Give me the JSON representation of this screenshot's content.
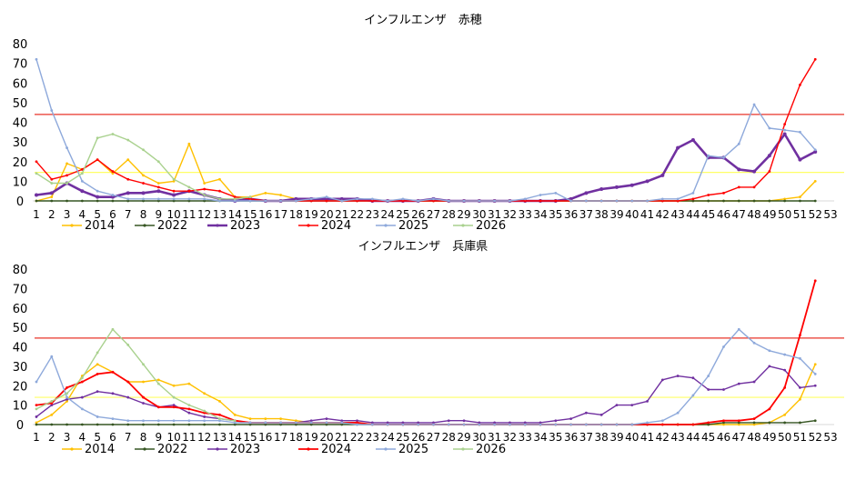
{
  "chart_data": [
    {
      "type": "line",
      "title": "インフルエンザ　赤穂",
      "categories": [
        "1",
        "2",
        "3",
        "4",
        "5",
        "6",
        "7",
        "8",
        "9",
        "10",
        "11",
        "12",
        "13",
        "14",
        "15",
        "16",
        "17",
        "18",
        "19",
        "20",
        "21",
        "22",
        "23",
        "24",
        "25",
        "26",
        "27",
        "28",
        "29",
        "30",
        "31",
        "32",
        "33",
        "34",
        "35",
        "36",
        "37",
        "38",
        "39",
        "40",
        "41",
        "42",
        "43",
        "44",
        "45",
        "46",
        "47",
        "48",
        "49",
        "50",
        "51",
        "52",
        "53"
      ],
      "yticks": [
        "0",
        "10",
        "20",
        "30",
        "40",
        "50",
        "60",
        "70",
        "80"
      ],
      "ylim": [
        0,
        80
      ],
      "reference_lines": [
        {
          "value": 44,
          "color": "#e8352a"
        },
        {
          "value": 14.5,
          "color": "#ffff66"
        }
      ],
      "legend_placement": "bottom",
      "series": [
        {
          "name": "2014",
          "color": "#ffc000",
          "width": 1.4,
          "values": [
            0,
            2,
            19,
            16,
            21,
            14,
            21,
            13,
            9,
            10,
            29,
            9,
            11,
            2,
            2,
            4,
            3,
            1,
            1,
            1,
            1,
            1,
            0,
            0,
            0,
            0,
            0,
            0,
            0,
            0,
            0,
            0,
            0,
            0,
            0,
            0,
            0,
            0,
            0,
            0,
            0,
            0,
            0,
            0,
            0,
            0,
            0,
            0,
            0,
            1,
            2,
            10,
            null
          ]
        },
        {
          "name": "2022",
          "color": "#375623",
          "width": 1.4,
          "values": [
            0,
            0,
            0,
            0,
            0,
            0,
            0,
            0,
            0,
            0,
            0,
            0,
            0,
            0,
            0,
            0,
            0,
            0,
            0,
            0,
            0,
            0,
            0,
            0,
            0,
            0,
            0,
            0,
            0,
            0,
            0,
            0,
            0,
            0,
            0,
            0,
            0,
            0,
            0,
            0,
            0,
            0,
            0,
            0,
            0,
            0,
            0,
            0,
            0,
            0,
            0,
            0,
            null
          ]
        },
        {
          "name": "2023",
          "color": "#7030a0",
          "width": 2.6,
          "values": [
            3,
            4,
            9,
            5,
            2,
            2,
            4,
            4,
            5,
            3,
            5,
            3,
            1,
            0,
            1,
            0,
            0,
            1,
            1,
            1,
            1,
            1,
            0,
            0,
            0,
            0,
            1,
            0,
            0,
            0,
            0,
            0,
            0,
            0,
            0,
            1,
            4,
            6,
            7,
            8,
            10,
            13,
            27,
            31,
            22,
            22,
            16,
            15,
            23,
            34,
            21,
            25,
            null
          ]
        },
        {
          "name": "2024",
          "color": "#ff0000",
          "width": 1.4,
          "values": [
            20,
            11,
            13,
            16,
            21,
            15,
            11,
            9,
            7,
            5,
            5,
            6,
            5,
            2,
            1,
            0,
            0,
            0,
            0,
            0,
            0,
            0,
            0,
            0,
            0,
            0,
            0,
            0,
            0,
            0,
            0,
            0,
            0,
            0,
            0,
            0,
            0,
            0,
            0,
            0,
            0,
            0,
            0,
            1,
            3,
            4,
            7,
            7,
            15,
            39,
            59,
            72,
            null
          ]
        },
        {
          "name": "2025",
          "color": "#8ea9db",
          "width": 1.4,
          "values": [
            72,
            46,
            27,
            10,
            5,
            3,
            1,
            1,
            1,
            1,
            1,
            1,
            0,
            0,
            0,
            0,
            0,
            0,
            1,
            2,
            0,
            1,
            1,
            0,
            1,
            0,
            1,
            0,
            0,
            0,
            0,
            0,
            1,
            3,
            4,
            0,
            0,
            0,
            0,
            0,
            0,
            1,
            1,
            4,
            23,
            22,
            29,
            49,
            37,
            36,
            35,
            26,
            null
          ]
        },
        {
          "name": "2026",
          "color": "#a9d18e",
          "width": 1.4,
          "values": [
            14,
            9,
            9,
            14,
            32,
            34,
            31,
            26,
            20,
            11,
            7,
            3,
            1,
            1,
            2,
            null,
            null,
            null,
            null,
            null,
            null,
            null,
            null,
            null,
            null,
            null,
            null,
            null,
            null,
            null,
            null,
            null,
            null,
            null,
            null,
            null,
            null,
            null,
            null,
            null,
            null,
            null,
            null,
            null,
            null,
            null,
            null,
            null,
            null,
            null,
            null,
            null,
            null
          ]
        }
      ]
    },
    {
      "type": "line",
      "title": "インフルエンザ　兵庫県",
      "categories": [
        "1",
        "2",
        "3",
        "4",
        "5",
        "6",
        "7",
        "8",
        "9",
        "10",
        "11",
        "12",
        "13",
        "14",
        "15",
        "16",
        "17",
        "18",
        "19",
        "20",
        "21",
        "22",
        "23",
        "24",
        "25",
        "26",
        "27",
        "28",
        "29",
        "30",
        "31",
        "32",
        "33",
        "34",
        "35",
        "36",
        "37",
        "38",
        "39",
        "40",
        "41",
        "42",
        "43",
        "44",
        "45",
        "46",
        "47",
        "48",
        "49",
        "50",
        "51",
        "52",
        "53"
      ],
      "yticks": [
        "0",
        "10",
        "20",
        "30",
        "40",
        "50",
        "60",
        "70",
        "80"
      ],
      "ylim": [
        0,
        80
      ],
      "reference_lines": [
        {
          "value": 44.5,
          "color": "#e8352a"
        },
        {
          "value": 14,
          "color": "#ffff66"
        }
      ],
      "legend_placement": "bottom",
      "series": [
        {
          "name": "2014",
          "color": "#ffc000",
          "width": 1.4,
          "values": [
            1,
            5,
            12,
            25,
            31,
            27,
            22,
            22,
            23,
            20,
            21,
            16,
            12,
            5,
            3,
            3,
            3,
            2,
            1,
            1,
            1,
            1,
            0,
            0,
            0,
            0,
            0,
            0,
            0,
            0,
            0,
            0,
            0,
            0,
            0,
            0,
            0,
            0,
            0,
            0,
            0,
            0,
            0,
            0,
            0,
            0,
            0,
            0,
            1,
            5,
            13,
            31,
            null
          ]
        },
        {
          "name": "2022",
          "color": "#375623",
          "width": 1.4,
          "values": [
            0,
            0,
            0,
            0,
            0,
            0,
            0,
            0,
            0,
            0,
            0,
            0,
            0,
            0,
            0,
            0,
            0,
            0,
            0,
            0,
            0,
            0,
            0,
            0,
            0,
            0,
            0,
            0,
            0,
            0,
            0,
            0,
            0,
            0,
            0,
            0,
            0,
            0,
            0,
            0,
            0,
            0,
            0,
            0,
            0,
            1,
            1,
            1,
            1,
            1,
            1,
            2,
            null
          ]
        },
        {
          "name": "2023",
          "color": "#7030a0",
          "width": 1.4,
          "values": [
            4,
            10,
            13,
            14,
            17,
            16,
            14,
            11,
            9,
            10,
            6,
            4,
            3,
            2,
            1,
            1,
            1,
            1,
            2,
            3,
            2,
            2,
            1,
            1,
            1,
            1,
            1,
            2,
            2,
            1,
            1,
            1,
            1,
            1,
            2,
            3,
            6,
            5,
            10,
            10,
            12,
            23,
            25,
            24,
            18,
            18,
            21,
            22,
            30,
            28,
            19,
            20,
            null
          ]
        },
        {
          "name": "2024",
          "color": "#ff0000",
          "width": 1.8,
          "values": [
            10,
            11,
            19,
            22,
            26,
            27,
            22,
            14,
            9,
            9,
            8,
            6,
            5,
            2,
            1,
            1,
            1,
            1,
            1,
            1,
            1,
            1,
            0,
            0,
            0,
            0,
            0,
            0,
            0,
            0,
            0,
            0,
            0,
            0,
            0,
            0,
            0,
            0,
            0,
            0,
            0,
            0,
            0,
            0,
            1,
            2,
            2,
            3,
            8,
            19,
            46,
            74,
            null
          ]
        },
        {
          "name": "2025",
          "color": "#8ea9db",
          "width": 1.4,
          "values": [
            22,
            35,
            14,
            8,
            4,
            3,
            2,
            2,
            2,
            2,
            2,
            2,
            2,
            1,
            1,
            1,
            1,
            1,
            1,
            1,
            1,
            0,
            0,
            0,
            0,
            0,
            0,
            0,
            0,
            0,
            0,
            0,
            0,
            0,
            0,
            0,
            0,
            0,
            0,
            0,
            1,
            2,
            6,
            15,
            25,
            40,
            49,
            42,
            38,
            36,
            34,
            26,
            null
          ]
        },
        {
          "name": "2026",
          "color": "#a9d18e",
          "width": 1.4,
          "values": [
            8,
            12,
            16,
            24,
            37,
            49,
            41,
            31,
            21,
            14,
            10,
            7,
            3,
            2,
            null,
            null,
            null,
            null,
            null,
            null,
            null,
            null,
            null,
            null,
            null,
            null,
            null,
            null,
            null,
            null,
            null,
            null,
            null,
            null,
            null,
            null,
            null,
            null,
            null,
            null,
            null,
            null,
            null,
            null,
            null,
            null,
            null,
            null,
            null,
            null,
            null,
            null,
            null
          ]
        }
      ]
    }
  ]
}
